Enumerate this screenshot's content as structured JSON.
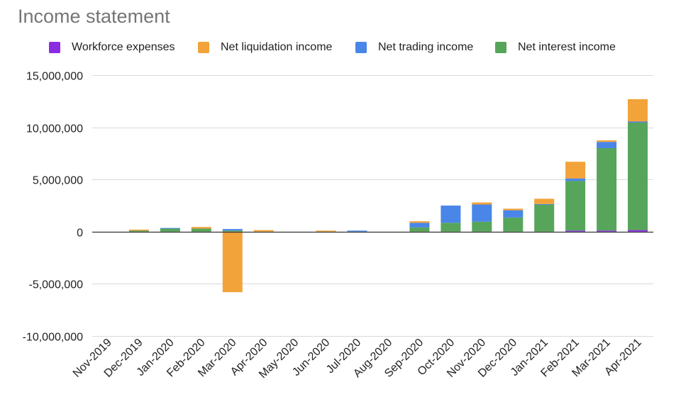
{
  "chart_data": {
    "type": "bar",
    "stacked": true,
    "title": "Income statement",
    "xlabel": "",
    "ylabel": "",
    "ylim": [
      -10000000,
      15000000
    ],
    "yticks": [
      15000000,
      10000000,
      5000000,
      0,
      -5000000,
      -10000000
    ],
    "ytick_labels": [
      "15,000,000",
      "10,000,000",
      "5,000,000",
      "0",
      "-5,000,000",
      "-10,000,000"
    ],
    "grid": true,
    "legend_position": "top",
    "categories": [
      "Nov-2019",
      "Dec-2019",
      "Jan-2020",
      "Feb-2020",
      "Mar-2020",
      "Apr-2020",
      "May-2020",
      "Jun-2020",
      "Jul-2020",
      "Aug-2020",
      "Sep-2020",
      "Oct-2020",
      "Nov-2020",
      "Dec-2020",
      "Jan-2021",
      "Feb-2021",
      "Mar-2021",
      "Apr-2021"
    ],
    "series": [
      {
        "name": "Workforce expenses",
        "color": "#8b2be2",
        "values": [
          0,
          0,
          0,
          0,
          0,
          0,
          0,
          0,
          0,
          0,
          0,
          0,
          0,
          0,
          0,
          100000,
          100000,
          150000
        ]
      },
      {
        "name": "Net interest income",
        "color": "#57a55a",
        "values": [
          0,
          100000,
          300000,
          300000,
          100000,
          0,
          0,
          0,
          0,
          0,
          400000,
          850000,
          950000,
          1350000,
          2600000,
          4750000,
          7900000,
          10300000
        ]
      },
      {
        "name": "Net trading income",
        "color": "#4a86e8",
        "values": [
          0,
          0,
          50000,
          0,
          150000,
          0,
          0,
          0,
          100000,
          0,
          450000,
          1650000,
          1650000,
          700000,
          50000,
          250000,
          600000,
          100000
        ]
      },
      {
        "name": "Net liquidation income",
        "color": "#f2a33a",
        "values": [
          0,
          100000,
          0,
          150000,
          -5800000,
          150000,
          0,
          100000,
          0,
          0,
          150000,
          0,
          200000,
          150000,
          500000,
          1600000,
          150000,
          2150000
        ]
      }
    ],
    "legend_order": [
      "Workforce expenses",
      "Net liquidation income",
      "Net trading income",
      "Net interest income"
    ]
  }
}
